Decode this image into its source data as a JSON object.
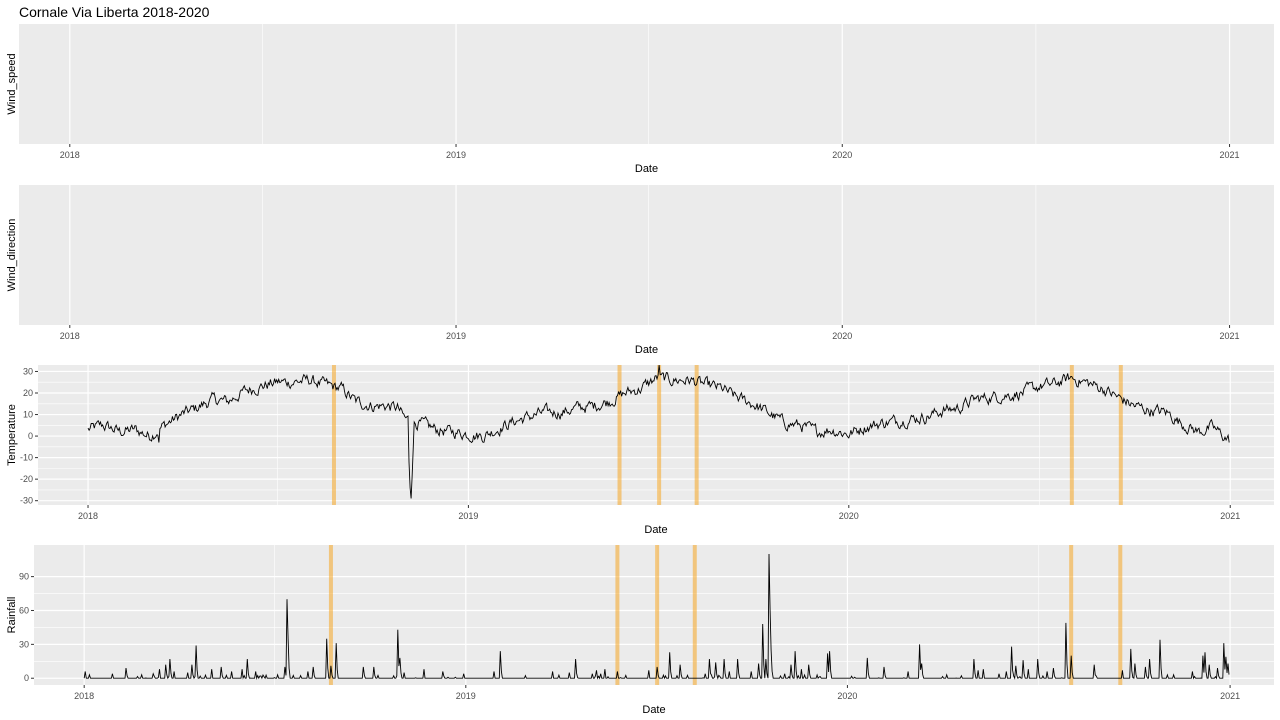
{
  "title": "Cornale Via Liberta 2018-2020",
  "colors": {
    "panel_bg": "#EBEBEB",
    "grid": "#FFFFFF",
    "line": "#000000",
    "highlight": "#F5A623"
  },
  "x_axis": {
    "label": "Date",
    "ticks": [
      "2018",
      "2019",
      "2020",
      "2021"
    ]
  },
  "highlight_dates": [
    "2018-08-25",
    "2019-05-26",
    "2019-07-03",
    "2019-08-08",
    "2020-08-02",
    "2020-09-18"
  ],
  "chart_data": [
    {
      "type": "line",
      "xlabel": "Date",
      "ylabel": "Wind_speed",
      "x_range": [
        "2017-11-14",
        "2021-02-12"
      ],
      "x_ticks": [
        "2018",
        "2019",
        "2020",
        "2021"
      ],
      "series": [],
      "grid": true
    },
    {
      "type": "line",
      "xlabel": "Date",
      "ylabel": "Wind_direction",
      "x_range": [
        "2017-11-14",
        "2021-02-12"
      ],
      "x_ticks": [
        "2018",
        "2019",
        "2020",
        "2021"
      ],
      "series": [],
      "grid": true
    },
    {
      "type": "line",
      "xlabel": "Date",
      "ylabel": "Temperature",
      "x_range": [
        "2017-11-14",
        "2021-02-12"
      ],
      "x_ticks": [
        "2018",
        "2019",
        "2020",
        "2021"
      ],
      "y_ticks": [
        "30",
        "20",
        "10",
        "0",
        "-10",
        "-20",
        "-30"
      ],
      "ylim": [
        -32,
        33
      ],
      "grid": true,
      "shaded_dates": [
        "2018-08-25",
        "2019-05-26",
        "2019-07-03",
        "2019-08-08",
        "2020-08-02",
        "2020-09-18"
      ],
      "anchors": [
        [
          "2018-01-01",
          3
        ],
        [
          "2018-01-15",
          5
        ],
        [
          "2018-02-01",
          2
        ],
        [
          "2018-02-15",
          3
        ],
        [
          "2018-03-01",
          0
        ],
        [
          "2018-03-15",
          5
        ],
        [
          "2018-04-01",
          10
        ],
        [
          "2018-04-15",
          13
        ],
        [
          "2018-05-01",
          17
        ],
        [
          "2018-05-15",
          16
        ],
        [
          "2018-06-01",
          21
        ],
        [
          "2018-06-15",
          23
        ],
        [
          "2018-07-01",
          25
        ],
        [
          "2018-07-15",
          25
        ],
        [
          "2018-08-01",
          26
        ],
        [
          "2018-08-15",
          24
        ],
        [
          "2018-09-01",
          22
        ],
        [
          "2018-09-15",
          16
        ],
        [
          "2018-10-01",
          14
        ],
        [
          "2018-10-15",
          14
        ],
        [
          "2018-10-25",
          13
        ],
        [
          "2018-11-01",
          8
        ],
        [
          "2018-11-15",
          6
        ],
        [
          "2018-12-01",
          3
        ],
        [
          "2018-12-15",
          2
        ],
        [
          "2019-01-01",
          1
        ],
        [
          "2019-01-15",
          0
        ],
        [
          "2019-02-01",
          4
        ],
        [
          "2019-02-15",
          7
        ],
        [
          "2019-03-01",
          9
        ],
        [
          "2019-03-15",
          11
        ],
        [
          "2019-04-01",
          11
        ],
        [
          "2019-04-15",
          13
        ],
        [
          "2019-05-01",
          14
        ],
        [
          "2019-05-15",
          16
        ],
        [
          "2019-06-01",
          20
        ],
        [
          "2019-06-15",
          22
        ],
        [
          "2019-07-01",
          27
        ],
        [
          "2019-07-15",
          26
        ],
        [
          "2019-08-01",
          26
        ],
        [
          "2019-08-15",
          24
        ],
        [
          "2019-09-01",
          22
        ],
        [
          "2019-09-15",
          18
        ],
        [
          "2019-10-01",
          15
        ],
        [
          "2019-10-15",
          11
        ],
        [
          "2019-11-01",
          6
        ],
        [
          "2019-11-15",
          5
        ],
        [
          "2019-12-01",
          2
        ],
        [
          "2019-12-15",
          3
        ],
        [
          "2020-01-01",
          1
        ],
        [
          "2020-01-15",
          4
        ],
        [
          "2020-02-01",
          6
        ],
        [
          "2020-02-15",
          7
        ],
        [
          "2020-03-01",
          8
        ],
        [
          "2020-03-15",
          9
        ],
        [
          "2020-04-01",
          12
        ],
        [
          "2020-04-15",
          13
        ],
        [
          "2020-05-01",
          17
        ],
        [
          "2020-05-15",
          18
        ],
        [
          "2020-06-01",
          19
        ],
        [
          "2020-06-15",
          20
        ],
        [
          "2020-07-01",
          23
        ],
        [
          "2020-07-15",
          24
        ],
        [
          "2020-08-01",
          27
        ],
        [
          "2020-08-15",
          25
        ],
        [
          "2020-09-01",
          22
        ],
        [
          "2020-09-15",
          18
        ],
        [
          "2020-10-01",
          14
        ],
        [
          "2020-10-15",
          12
        ],
        [
          "2020-11-01",
          11
        ],
        [
          "2020-11-15",
          6
        ],
        [
          "2020-12-01",
          2
        ],
        [
          "2020-12-15",
          4
        ],
        [
          "2020-12-31",
          -2
        ]
      ],
      "spikes": [
        [
          "2018-11-05",
          -12
        ],
        [
          "2018-11-06",
          -24
        ],
        [
          "2018-11-07",
          -29
        ],
        [
          "2018-11-08",
          -19
        ],
        [
          "2018-11-09",
          -6
        ],
        [
          "2019-07-03",
          33
        ],
        [
          "2018-03-10",
          -3
        ],
        [
          "2020-12-31",
          -3
        ]
      ]
    },
    {
      "type": "line",
      "xlabel": "Date",
      "ylabel": "Rainfall",
      "x_range": [
        "2017-11-14",
        "2021-02-12"
      ],
      "x_ticks": [
        "2018",
        "2019",
        "2020",
        "2021"
      ],
      "y_ticks": [
        "90",
        "60",
        "30",
        "0"
      ],
      "ylim": [
        -6,
        118
      ],
      "grid": true,
      "shaded_dates": [
        "2018-08-25",
        "2019-05-26",
        "2019-07-03",
        "2019-08-08",
        "2020-08-02",
        "2020-09-18"
      ],
      "events": [
        [
          "2018-01-02",
          6
        ],
        [
          "2018-01-06",
          3
        ],
        [
          "2018-01-28",
          4
        ],
        [
          "2018-02-10",
          9
        ],
        [
          "2018-02-25",
          3
        ],
        [
          "2018-03-08",
          4
        ],
        [
          "2018-03-14",
          8
        ],
        [
          "2018-03-20",
          12
        ],
        [
          "2018-03-24",
          17
        ],
        [
          "2018-03-28",
          6
        ],
        [
          "2018-04-10",
          5
        ],
        [
          "2018-04-14",
          12
        ],
        [
          "2018-04-18",
          29
        ],
        [
          "2018-05-03",
          8
        ],
        [
          "2018-05-12",
          10
        ],
        [
          "2018-05-22",
          6
        ],
        [
          "2018-06-01",
          8
        ],
        [
          "2018-06-06",
          17
        ],
        [
          "2018-06-14",
          6
        ],
        [
          "2018-07-05",
          3
        ],
        [
          "2018-07-12",
          10
        ],
        [
          "2018-07-14",
          70
        ],
        [
          "2018-07-15",
          35
        ],
        [
          "2018-08-03",
          6
        ],
        [
          "2018-08-08",
          10
        ],
        [
          "2018-08-21",
          35
        ],
        [
          "2018-08-25",
          11
        ],
        [
          "2018-08-30",
          31
        ],
        [
          "2018-09-25",
          10
        ],
        [
          "2018-10-05",
          10
        ],
        [
          "2018-10-28",
          43
        ],
        [
          "2018-10-30",
          18
        ],
        [
          "2018-11-03",
          5
        ],
        [
          "2018-11-22",
          8
        ],
        [
          "2018-12-10",
          6
        ],
        [
          "2018-12-30",
          4
        ],
        [
          "2019-01-28",
          6
        ],
        [
          "2019-02-03",
          24
        ],
        [
          "2019-03-25",
          6
        ],
        [
          "2019-04-10",
          5
        ],
        [
          "2019-04-16",
          17
        ],
        [
          "2019-05-02",
          4
        ],
        [
          "2019-05-06",
          7
        ],
        [
          "2019-05-10",
          4
        ],
        [
          "2019-05-14",
          8
        ],
        [
          "2019-05-26",
          6
        ],
        [
          "2019-06-25",
          7
        ],
        [
          "2019-07-03",
          10
        ],
        [
          "2019-07-15",
          23
        ],
        [
          "2019-07-25",
          12
        ],
        [
          "2019-08-18",
          4
        ],
        [
          "2019-08-22",
          17
        ],
        [
          "2019-08-28",
          14
        ],
        [
          "2019-09-05",
          17
        ],
        [
          "2019-09-10",
          6
        ],
        [
          "2019-09-18",
          17
        ],
        [
          "2019-10-01",
          6
        ],
        [
          "2019-10-08",
          13
        ],
        [
          "2019-10-12",
          48
        ],
        [
          "2019-10-15",
          17
        ],
        [
          "2019-10-18",
          110
        ],
        [
          "2019-10-19",
          60
        ],
        [
          "2019-10-20",
          25
        ],
        [
          "2019-11-02",
          4
        ],
        [
          "2019-11-08",
          12
        ],
        [
          "2019-11-12",
          24
        ],
        [
          "2019-11-18",
          8
        ],
        [
          "2019-11-25",
          12
        ],
        [
          "2019-12-13",
          22
        ],
        [
          "2019-12-15",
          24
        ],
        [
          "2020-01-20",
          18
        ],
        [
          "2020-02-05",
          10
        ],
        [
          "2020-02-28",
          6
        ],
        [
          "2020-03-10",
          30
        ],
        [
          "2020-03-12",
          13
        ],
        [
          "2020-04-05",
          3
        ],
        [
          "2020-05-01",
          17
        ],
        [
          "2020-05-05",
          7
        ],
        [
          "2020-05-10",
          8
        ],
        [
          "2020-05-25",
          4
        ],
        [
          "2020-06-01",
          6
        ],
        [
          "2020-06-06",
          28
        ],
        [
          "2020-06-10",
          11
        ],
        [
          "2020-06-17",
          16
        ],
        [
          "2020-06-22",
          8
        ],
        [
          "2020-07-01",
          17
        ],
        [
          "2020-07-10",
          6
        ],
        [
          "2020-07-16",
          9
        ],
        [
          "2020-07-28",
          49
        ],
        [
          "2020-08-02",
          20
        ],
        [
          "2020-08-24",
          12
        ],
        [
          "2020-09-20",
          7
        ],
        [
          "2020-09-28",
          26
        ],
        [
          "2020-10-02",
          13
        ],
        [
          "2020-10-12",
          10
        ],
        [
          "2020-10-16",
          17
        ],
        [
          "2020-10-26",
          34
        ],
        [
          "2020-11-08",
          3
        ],
        [
          "2020-11-26",
          6
        ],
        [
          "2020-12-06",
          20
        ],
        [
          "2020-12-08",
          23
        ],
        [
          "2020-12-12",
          12
        ],
        [
          "2020-12-20",
          9
        ],
        [
          "2020-12-26",
          31
        ],
        [
          "2020-12-28",
          19
        ],
        [
          "2020-12-30",
          13
        ]
      ]
    }
  ]
}
